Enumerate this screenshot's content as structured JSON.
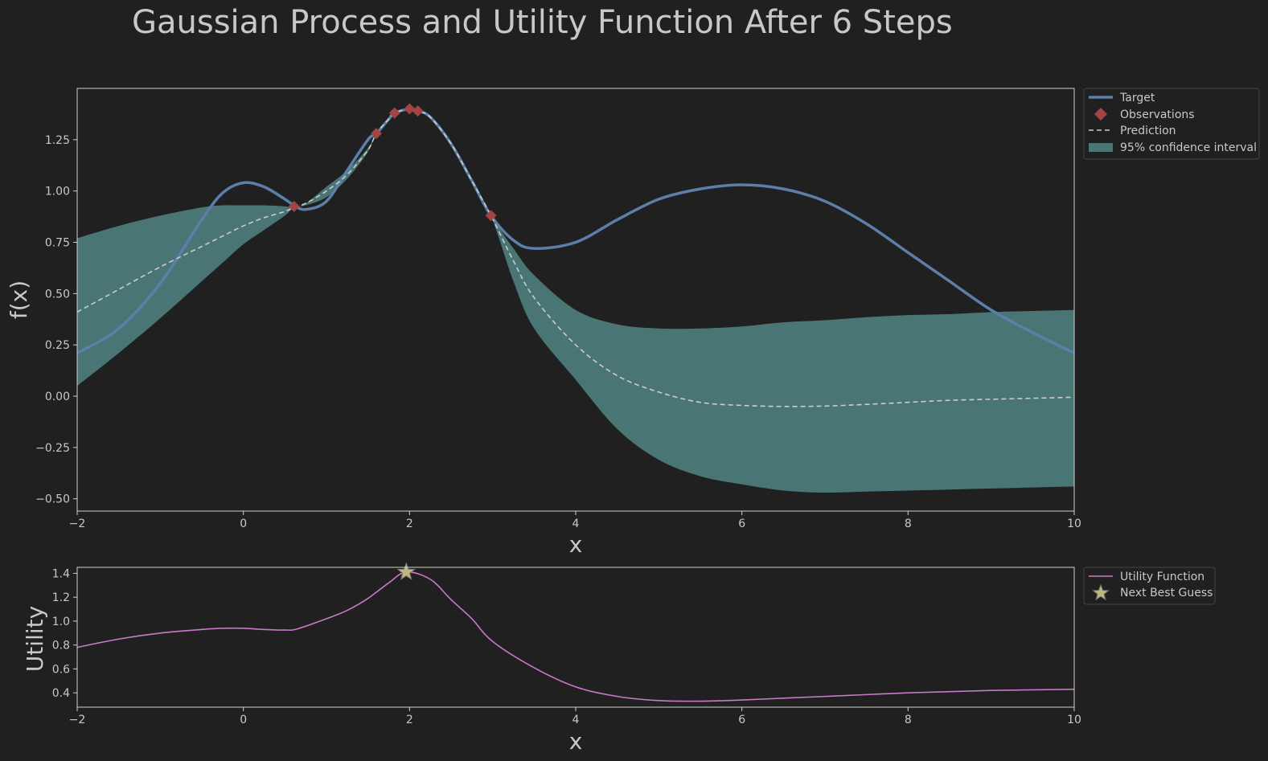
{
  "figure": {
    "title": "Gaussian Process and Utility Function After 6 Steps"
  },
  "chart_data": [
    {
      "type": "line",
      "xlabel": "x",
      "ylabel": "f(x)",
      "xlim": [
        -2,
        10
      ],
      "ylim": [
        -0.56,
        1.5
      ],
      "xticks": [
        "−2",
        "0",
        "2",
        "4",
        "6",
        "8",
        "10"
      ],
      "xtick_values": [
        -2,
        0,
        2,
        4,
        6,
        8,
        10
      ],
      "yticks": [
        "−0.50",
        "−0.25",
        "0.00",
        "0.25",
        "0.50",
        "0.75",
        "1.00",
        "1.25"
      ],
      "ytick_values": [
        -0.5,
        -0.25,
        0,
        0.25,
        0.5,
        0.75,
        1.0,
        1.25
      ],
      "grid": false,
      "legend_position": "outside-top-right",
      "x": [
        -2,
        -1.5,
        -1,
        -0.5,
        -0.25,
        0,
        0.25,
        0.5,
        0.61,
        0.75,
        1,
        1.25,
        1.5,
        1.6,
        1.75,
        1.82,
        2,
        2.1,
        2.25,
        2.5,
        2.75,
        2.98,
        3.25,
        3.5,
        4,
        4.5,
        5,
        5.5,
        6,
        6.5,
        7,
        7.5,
        8,
        8.5,
        9,
        9.5,
        10
      ],
      "series": [
        {
          "name": "Target",
          "color": "#5b7fa8",
          "values": [
            0.21,
            0.33,
            0.55,
            0.86,
            0.99,
            1.04,
            1.02,
            0.96,
            0.93,
            0.91,
            0.95,
            1.1,
            1.25,
            1.28,
            1.35,
            1.38,
            1.4,
            1.39,
            1.36,
            1.23,
            1.05,
            0.88,
            0.76,
            0.72,
            0.75,
            0.86,
            0.96,
            1.01,
            1.03,
            1.01,
            0.95,
            0.84,
            0.7,
            0.56,
            0.42,
            0.31,
            0.21
          ]
        },
        {
          "name": "Prediction",
          "color": "#cccccc",
          "values": [
            0.41,
            0.52,
            0.63,
            0.73,
            0.78,
            0.83,
            0.87,
            0.9,
            0.92,
            0.94,
            1.0,
            1.08,
            1.2,
            1.28,
            1.35,
            1.38,
            1.4,
            1.39,
            1.36,
            1.23,
            1.05,
            0.88,
            0.66,
            0.48,
            0.25,
            0.1,
            0.02,
            -0.03,
            -0.045,
            -0.05,
            -0.048,
            -0.04,
            -0.03,
            -0.02,
            -0.015,
            -0.01,
            -0.005
          ]
        }
      ],
      "confidence_interval": {
        "name": "95% confidence interval",
        "color": "#4a7575",
        "lower": [
          0.05,
          0.21,
          0.38,
          0.56,
          0.65,
          0.74,
          0.81,
          0.88,
          0.92,
          0.93,
          0.97,
          1.06,
          1.19,
          1.28,
          1.35,
          1.38,
          1.4,
          1.39,
          1.36,
          1.23,
          1.05,
          0.88,
          0.56,
          0.33,
          0.08,
          -0.16,
          -0.31,
          -0.39,
          -0.43,
          -0.46,
          -0.47,
          -0.465,
          -0.46,
          -0.455,
          -0.45,
          -0.445,
          -0.44
        ],
        "upper": [
          0.77,
          0.83,
          0.88,
          0.92,
          0.93,
          0.93,
          0.93,
          0.925,
          0.92,
          0.94,
          1.02,
          1.1,
          1.21,
          1.28,
          1.35,
          1.38,
          1.4,
          1.39,
          1.36,
          1.23,
          1.05,
          0.88,
          0.72,
          0.59,
          0.42,
          0.35,
          0.33,
          0.33,
          0.34,
          0.36,
          0.37,
          0.385,
          0.395,
          0.4,
          0.41,
          0.415,
          0.42
        ]
      },
      "observations": {
        "name": "Observations",
        "color": "#a34444",
        "x": [
          0.61,
          1.6,
          1.82,
          2.0,
          2.1,
          2.98
        ],
        "y": [
          0.925,
          1.28,
          1.38,
          1.4,
          1.39,
          0.88
        ]
      },
      "legend": [
        "Target",
        "Observations",
        "Prediction",
        "95% confidence interval"
      ]
    },
    {
      "type": "line",
      "xlabel": "x",
      "ylabel": "Utility",
      "xlim": [
        -2,
        10
      ],
      "ylim": [
        0.28,
        1.45
      ],
      "xticks": [
        "−2",
        "0",
        "2",
        "4",
        "6",
        "8",
        "10"
      ],
      "xtick_values": [
        -2,
        0,
        2,
        4,
        6,
        8,
        10
      ],
      "yticks": [
        "0.4",
        "0.6",
        "0.8",
        "1.0",
        "1.2",
        "1.4"
      ],
      "ytick_values": [
        0.4,
        0.6,
        0.8,
        1.0,
        1.2,
        1.4
      ],
      "grid": false,
      "legend_position": "outside-top-right",
      "x": [
        -2,
        -1.5,
        -1,
        -0.5,
        -0.25,
        0,
        0.25,
        0.5,
        0.65,
        1,
        1.25,
        1.5,
        1.75,
        1.96,
        2.25,
        2.5,
        2.75,
        3.0,
        3.5,
        4,
        4.5,
        5,
        5.5,
        6,
        6.5,
        7,
        7.5,
        8,
        8.5,
        9,
        9.5,
        10
      ],
      "series": [
        {
          "name": "Utility Function",
          "color": "#c77ac9",
          "values": [
            0.78,
            0.85,
            0.9,
            0.93,
            0.94,
            0.94,
            0.93,
            0.925,
            0.935,
            1.02,
            1.09,
            1.19,
            1.32,
            1.41,
            1.35,
            1.18,
            1.02,
            0.83,
            0.61,
            0.45,
            0.37,
            0.335,
            0.33,
            0.34,
            0.355,
            0.37,
            0.385,
            0.4,
            0.41,
            0.42,
            0.425,
            0.43
          ]
        }
      ],
      "next_best_guess": {
        "name": "Next Best Guess",
        "color": "#c2b67a",
        "x": 1.96,
        "y": 1.41
      },
      "legend": [
        "Utility Function",
        "Next Best Guess"
      ]
    }
  ]
}
